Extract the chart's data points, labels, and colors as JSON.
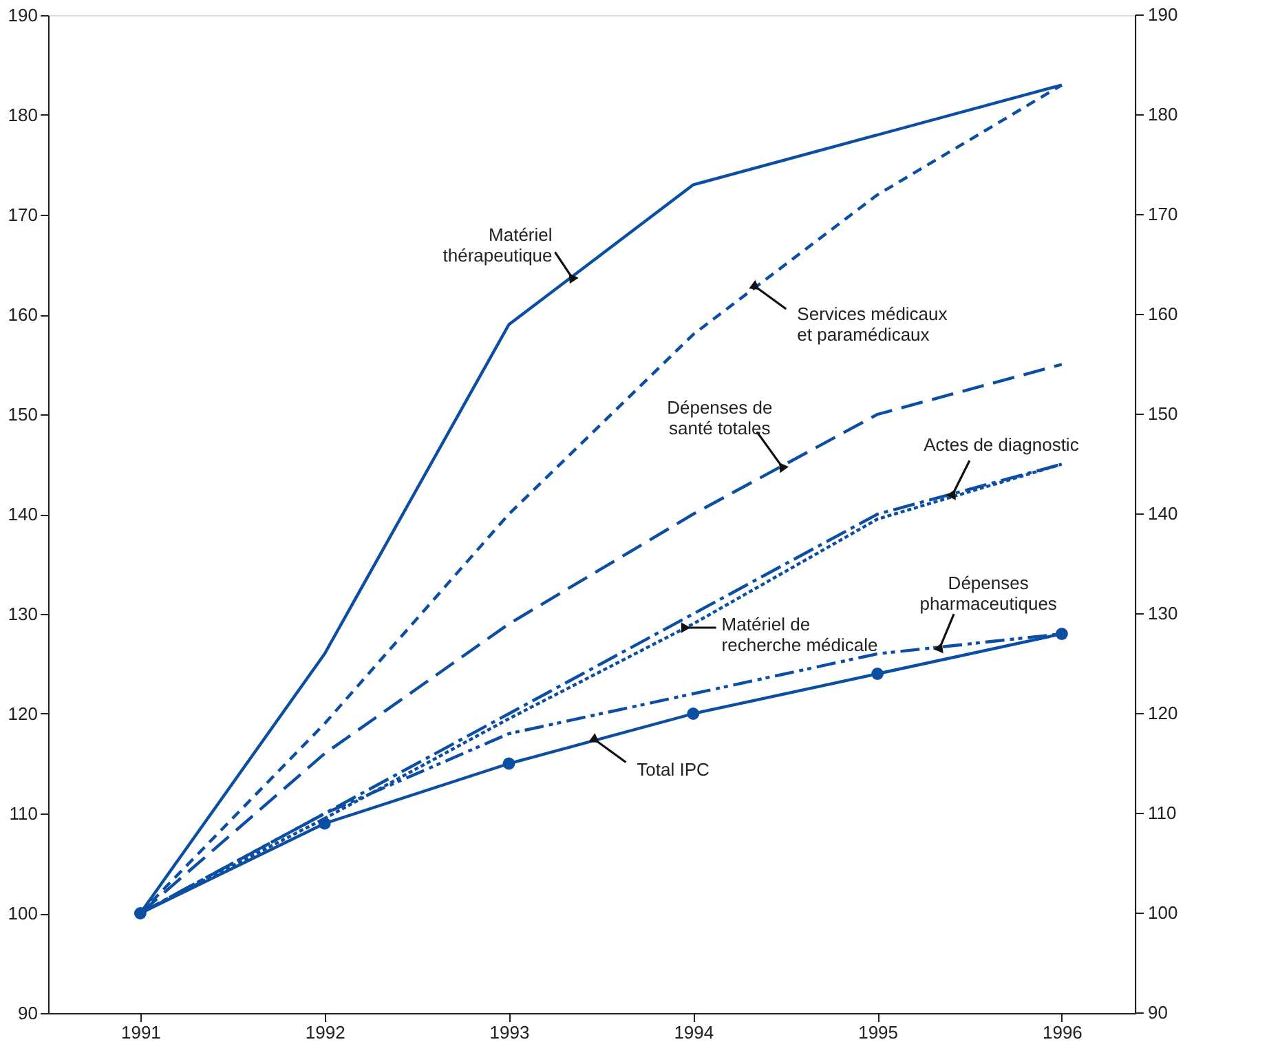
{
  "chart_data": {
    "type": "line",
    "x": [
      1991,
      1992,
      1993,
      1994,
      1995,
      1996
    ],
    "series": [
      {
        "name": "Matériel thérapeutique",
        "color": "#0b4ea2",
        "line_style": "solid",
        "marker": "none",
        "values": [
          100,
          126,
          159,
          173,
          178,
          183
        ]
      },
      {
        "name": "Services médicaux et paramédicaux",
        "color": "#0b4ea2",
        "line_style": "dashed",
        "marker": "none",
        "values": [
          100,
          119,
          140,
          158,
          172,
          183
        ]
      },
      {
        "name": "Dépenses de santé totales",
        "color": "#0b4ea2",
        "line_style": "longdash",
        "marker": "none",
        "values": [
          100,
          116,
          129,
          140,
          150,
          155
        ]
      },
      {
        "name": "Actes de diagnostic",
        "color": "#0b4ea2",
        "line_style": "dashdot",
        "marker": "none",
        "values": [
          100,
          110,
          120,
          130,
          140,
          145
        ]
      },
      {
        "name": "Matériel de recherche médicale",
        "color": "#0b4ea2",
        "line_style": "dotted",
        "marker": "none",
        "values": [
          100,
          109.5,
          119.5,
          129,
          139.5,
          145
        ]
      },
      {
        "name": "Dépenses pharmaceutiques",
        "color": "#0b4ea2",
        "line_style": "dashdotdot",
        "marker": "none",
        "values": [
          100,
          110,
          118,
          122,
          126,
          128
        ]
      },
      {
        "name": "Total IPC",
        "color": "#0b4ea2",
        "line_style": "solid",
        "marker": "circle",
        "values": [
          100,
          109,
          115,
          120,
          124,
          128
        ]
      }
    ],
    "xlim": [
      1990.5,
      1996.4
    ],
    "xticks": [
      1991,
      1992,
      1993,
      1994,
      1995,
      1996
    ],
    "ylim": [
      90,
      190
    ],
    "yticks": [
      90,
      100,
      110,
      120,
      130,
      140,
      150,
      160,
      170,
      180,
      190
    ],
    "y2lim": [
      90,
      190
    ],
    "y2ticks": [
      90,
      100,
      110,
      120,
      130,
      140,
      150,
      160,
      170,
      180,
      190
    ],
    "grid": false,
    "legend": false
  }
}
